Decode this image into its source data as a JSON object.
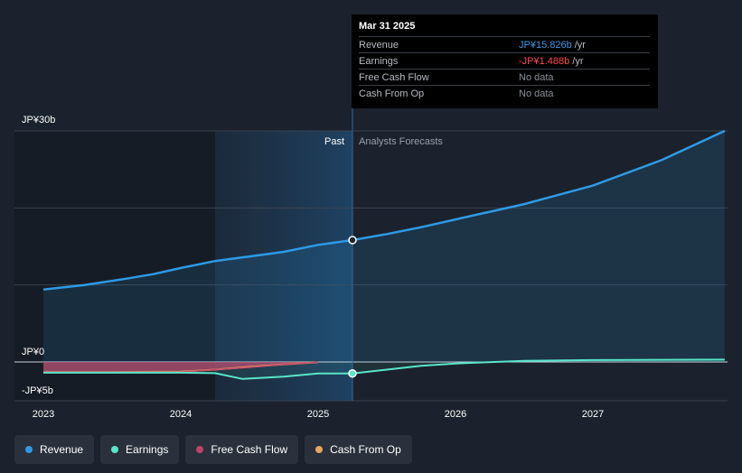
{
  "chart_data": {
    "type": "area",
    "x_range": [
      2022.9,
      2027.96
    ],
    "y_range": [
      -5.0,
      30.0
    ],
    "y_axis_labels": [
      "JP¥30b",
      "JP¥0",
      "-JP¥5b"
    ],
    "x_ticks": [
      {
        "x": 2023,
        "label": "2023"
      },
      {
        "x": 2024,
        "label": "2024"
      },
      {
        "x": 2025,
        "label": "2025"
      },
      {
        "x": 2026,
        "label": "2026"
      },
      {
        "x": 2027,
        "label": "2027"
      }
    ],
    "past_label": "Past",
    "forecast_label": "Analysts Forecasts",
    "past_start": 2024.25,
    "divider": 2025.25,
    "series": [
      {
        "name": "Revenue",
        "color": "#2e9ae6",
        "points": [
          [
            2023.0,
            9.4
          ],
          [
            2023.3,
            10.0
          ],
          [
            2023.6,
            10.8
          ],
          [
            2023.8,
            11.4
          ],
          [
            2024.0,
            12.2
          ],
          [
            2024.25,
            13.1
          ],
          [
            2024.5,
            13.7
          ],
          [
            2024.75,
            14.3
          ],
          [
            2025.0,
            15.2
          ],
          [
            2025.25,
            15.826
          ],
          [
            2025.5,
            16.6
          ],
          [
            2025.75,
            17.5
          ],
          [
            2026.0,
            18.5
          ],
          [
            2026.5,
            20.5
          ],
          [
            2027.0,
            22.9
          ],
          [
            2027.5,
            26.2
          ],
          [
            2027.96,
            30.0
          ]
        ]
      },
      {
        "name": "Earnings",
        "color": "#58e6c9",
        "points": [
          [
            2023.0,
            -1.4
          ],
          [
            2023.5,
            -1.4
          ],
          [
            2024.0,
            -1.4
          ],
          [
            2024.25,
            -1.45
          ],
          [
            2024.45,
            -2.2
          ],
          [
            2024.75,
            -1.9
          ],
          [
            2025.0,
            -1.5
          ],
          [
            2025.25,
            -1.488
          ],
          [
            2025.5,
            -1.0
          ],
          [
            2025.75,
            -0.5
          ],
          [
            2026.0,
            -0.2
          ],
          [
            2026.5,
            0.15
          ],
          [
            2027.0,
            0.25
          ],
          [
            2027.5,
            0.28
          ],
          [
            2027.96,
            0.3
          ]
        ]
      },
      {
        "name": "Free Cash Flow",
        "color": "#c0426b",
        "points": [
          [
            2023.0,
            -1.3
          ],
          [
            2023.5,
            -1.3
          ],
          [
            2024.0,
            -1.3
          ],
          [
            2024.25,
            -1.0
          ],
          [
            2024.5,
            -0.7
          ],
          [
            2024.75,
            -0.3
          ],
          [
            2025.0,
            -0.05
          ]
        ]
      },
      {
        "name": "Cash From Op",
        "color": "#e8a461",
        "points": [
          [
            2023.0,
            -1.3
          ],
          [
            2023.5,
            -1.3
          ],
          [
            2024.0,
            -1.25
          ],
          [
            2024.25,
            -1.0
          ],
          [
            2024.5,
            -0.65
          ],
          [
            2024.75,
            -0.3
          ],
          [
            2025.0,
            -0.05
          ]
        ]
      }
    ],
    "highlight": {
      "x": 2025.25,
      "revenue": 15.826,
      "earnings": -1.488
    }
  },
  "tooltip": {
    "date": "Mar 31 2025",
    "rows": [
      {
        "label": "Revenue",
        "value": "JP¥15.826b",
        "unit": "/yr",
        "color": "#3d9ae8"
      },
      {
        "label": "Earnings",
        "value": "-JP¥1.488b",
        "unit": "/yr",
        "color": "#ff4b4b"
      },
      {
        "label": "Free Cash Flow",
        "value": "No data",
        "unit": "",
        "color": "#8a8f96"
      },
      {
        "label": "Cash From Op",
        "value": "No data",
        "unit": "",
        "color": "#8a8f96"
      }
    ]
  },
  "legend": [
    {
      "label": "Revenue",
      "color": "#2e9ae6"
    },
    {
      "label": "Earnings",
      "color": "#58e6c9"
    },
    {
      "label": "Free Cash Flow",
      "color": "#c0426b"
    },
    {
      "label": "Cash From Op",
      "color": "#e8a461"
    }
  ]
}
